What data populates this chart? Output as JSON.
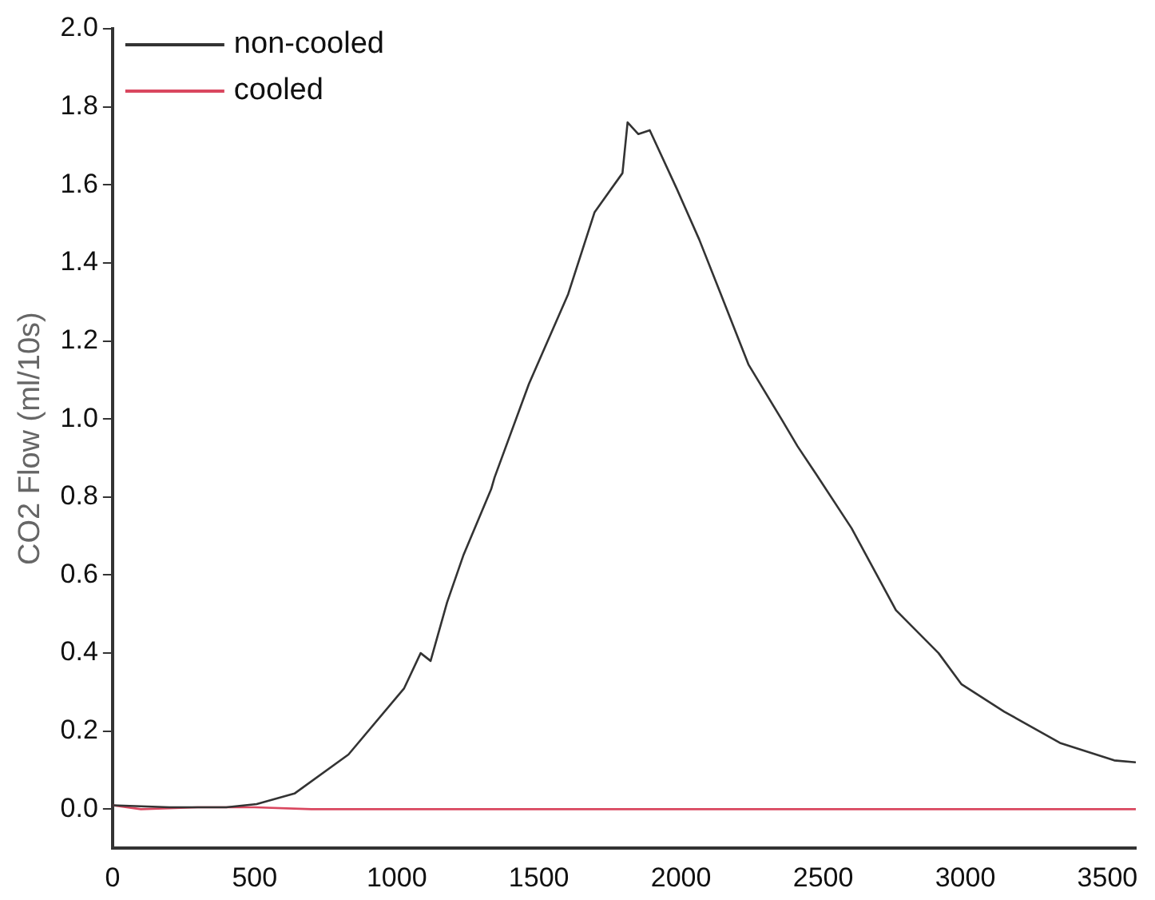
{
  "chart_data": {
    "type": "line",
    "ylabel": "CO2 Flow (ml/10s)",
    "xlim": [
      0,
      3600
    ],
    "xticks": [
      0,
      500,
      1000,
      1500,
      2000,
      2500,
      3000,
      3500
    ],
    "ylim": [
      -0.1,
      2.0
    ],
    "yticks": [
      {
        "value": 0,
        "label": "0.0"
      },
      {
        "value": 0.2,
        "label": "0.2"
      },
      {
        "value": 0.4,
        "label": "0.4"
      },
      {
        "value": 0.6,
        "label": "0.6"
      },
      {
        "value": 0.8,
        "label": "0.8"
      },
      {
        "value": 1.0,
        "label": "1.0"
      },
      {
        "value": 1.2,
        "label": "1.2"
      },
      {
        "value": 1.4,
        "label": "1.4"
      },
      {
        "value": 1.6,
        "label": "1.6"
      },
      {
        "value": 1.8,
        "label": "1.8"
      },
      {
        "value": 2.0,
        "label": "2.0"
      }
    ],
    "grid": false,
    "legend": "top left",
    "marker": "none",
    "line_style": "solid",
    "series": [
      {
        "name": "non-cooled",
        "color": "#333333",
        "x": [
          0,
          200,
          400,
          507,
          640,
          830,
          1026,
          1084,
          1119,
          1177,
          1234,
          1332,
          1344,
          1465,
          1603,
          1696,
          1794,
          1812,
          1850,
          1890,
          1985,
          2064,
          2140,
          2237,
          2353,
          2410,
          2474,
          2600,
          2756,
          2906,
          2987,
          3137,
          3333,
          3524,
          3600
        ],
        "values": [
          0.01,
          0.005,
          0.005,
          0.013,
          0.04,
          0.14,
          0.31,
          0.4,
          0.38,
          0.53,
          0.65,
          0.82,
          0.85,
          1.09,
          1.32,
          1.53,
          1.63,
          1.76,
          1.73,
          1.74,
          1.59,
          1.46,
          1.32,
          1.14,
          1.0,
          0.93,
          0.86,
          0.72,
          0.51,
          0.4,
          0.32,
          0.25,
          0.17,
          0.125,
          0.12
        ]
      },
      {
        "name": "cooled",
        "color": "#d9475f",
        "x": [
          0,
          100,
          300,
          500,
          700,
          1000,
          1100,
          1500,
          2000,
          2500,
          3000,
          3600
        ],
        "values": [
          0.01,
          0.0,
          0.005,
          0.005,
          0.0,
          0.0,
          0.0,
          0.0,
          0.0,
          0.0,
          0.0,
          0.0
        ]
      }
    ]
  }
}
